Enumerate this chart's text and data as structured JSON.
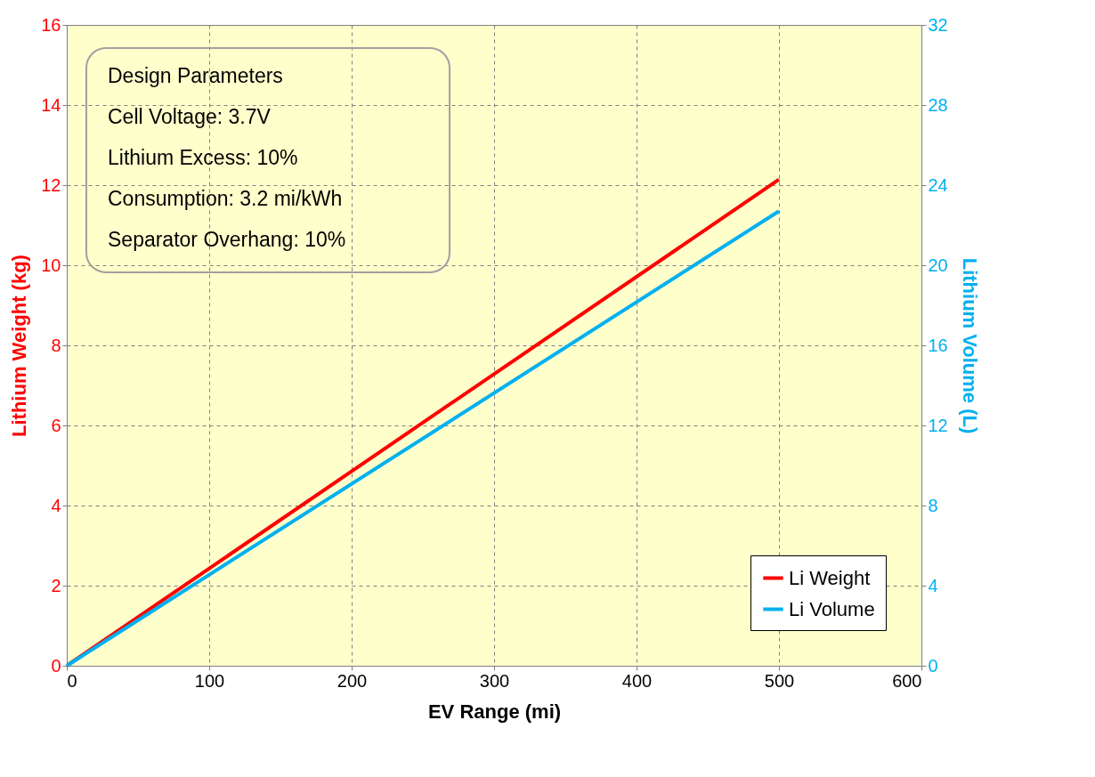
{
  "chart_data": {
    "type": "line",
    "xlabel": "EV Range (mi)",
    "ylabel": "Lithium Weight (kg)",
    "y2label": "Lithium Volume (L)",
    "x": [
      0,
      500
    ],
    "series": [
      {
        "name": "Li Weight",
        "color": "#ff0000",
        "values": [
          0,
          12.14
        ]
      },
      {
        "name": "Li Volume",
        "color": "#00b0f0",
        "values": [
          0,
          22.7
        ],
        "axis": "y2"
      }
    ],
    "xlim": [
      0,
      600
    ],
    "xticks": [
      0,
      100,
      200,
      300,
      400,
      500,
      600
    ],
    "ylim": [
      0,
      16
    ],
    "yticks": [
      0,
      2,
      4,
      6,
      8,
      10,
      12,
      14,
      16
    ],
    "y2lim": [
      0,
      32
    ],
    "y2ticks": [
      0,
      4,
      8,
      12,
      16,
      20,
      24,
      28,
      32
    ],
    "annotations": [
      "Design Parameters",
      "Cell Voltage: 3.7V",
      "Lithium Excess: 10%",
      "Consumption: 3.2 mi/kWh",
      "Separator Overhang: 10%"
    ],
    "grid": true,
    "legend": "bottom right",
    "marker": "none",
    "line_style": "solid"
  }
}
